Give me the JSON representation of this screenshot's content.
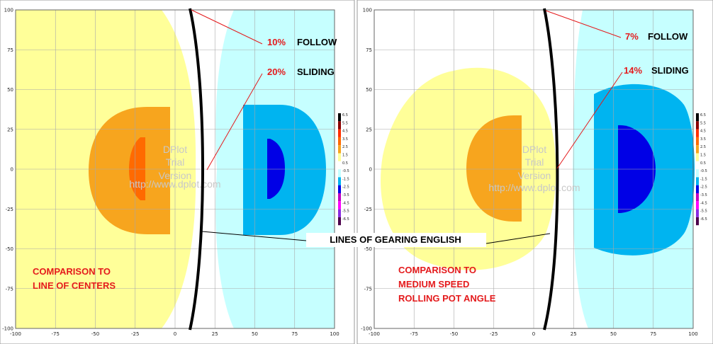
{
  "chart_data": [
    {
      "type": "heatmap",
      "xlim": [
        -100,
        100
      ],
      "ylim": [
        -100,
        100
      ],
      "x_ticks": [
        "-100",
        "-75",
        "-50",
        "-25",
        "0",
        "25",
        "50",
        "75",
        "100"
      ],
      "y_ticks": [
        "100",
        "75",
        "50",
        "25",
        "0",
        "-25",
        "-50",
        "-75",
        "-100"
      ],
      "annotations": [
        {
          "percent": "10%",
          "label": "FOLLOW"
        },
        {
          "percent": "20%",
          "label": "SLIDING"
        }
      ],
      "caption": [
        "COMPARISON TO",
        "LINE OF CENTERS"
      ],
      "watermark": [
        "DPlot",
        "Trial",
        "Version",
        "http://www.dplot.com"
      ],
      "legend_ticks": [
        "6.5",
        "5.5",
        "4.5",
        "3.5",
        "2.5",
        "1.5",
        "0.5",
        "-0.5",
        "-1.5",
        "-2.5",
        "-3.5",
        "-4.5",
        "-5.5",
        "-6.5"
      ],
      "colors": {
        "yellow": "#ffff99",
        "orange": "#f7a51e",
        "deep_orange": "#ff6a00",
        "cyan": "#c6ffff",
        "blue": "#00b4f0",
        "dark_blue": "#0000e6",
        "curve": "#000000",
        "leader": "#e41a1c"
      }
    },
    {
      "type": "heatmap",
      "xlim": [
        -100,
        100
      ],
      "ylim": [
        -100,
        100
      ],
      "x_ticks": [
        "-100",
        "-75",
        "-50",
        "-25",
        "0",
        "25",
        "50",
        "75",
        "100"
      ],
      "y_ticks": [
        "100",
        "75",
        "50",
        "25",
        "0",
        "-25",
        "-50",
        "-75",
        "-100"
      ],
      "annotations": [
        {
          "percent": "7%",
          "label": "FOLLOW"
        },
        {
          "percent": "14%",
          "label": "SLIDING"
        }
      ],
      "caption": [
        "COMPARISON TO",
        "MEDIUM SPEED",
        "ROLLING POT ANGLE"
      ],
      "watermark": [
        "DPlot",
        "Trial",
        "Version",
        "http://www.dplot.com"
      ],
      "legend_ticks": [
        "6.5",
        "5.5",
        "4.5",
        "3.5",
        "2.5",
        "1.5",
        "0.5",
        "-0.5",
        "-1.5",
        "-2.5",
        "-3.5",
        "-4.5",
        "-5.5",
        "-6.5"
      ],
      "colors": {
        "yellow": "#ffff99",
        "orange": "#f7a51e",
        "deep_orange": "#ff6a00",
        "cyan": "#c6ffff",
        "blue": "#00b4f0",
        "dark_blue": "#0000e6",
        "curve": "#000000",
        "leader": "#e41a1c"
      }
    }
  ],
  "shared_label": "LINES OF GEARING ENGLISH",
  "legend_colors": [
    "#4b004b",
    "#8a2be2",
    "#ff00ff",
    "#c000c0",
    "#0000e6",
    "#00b4f0",
    "#c6ffff",
    "#ffffff",
    "#ffff99",
    "#f7a51e",
    "#ff6a00",
    "#ff3000",
    "#8b0000",
    "#000000"
  ]
}
